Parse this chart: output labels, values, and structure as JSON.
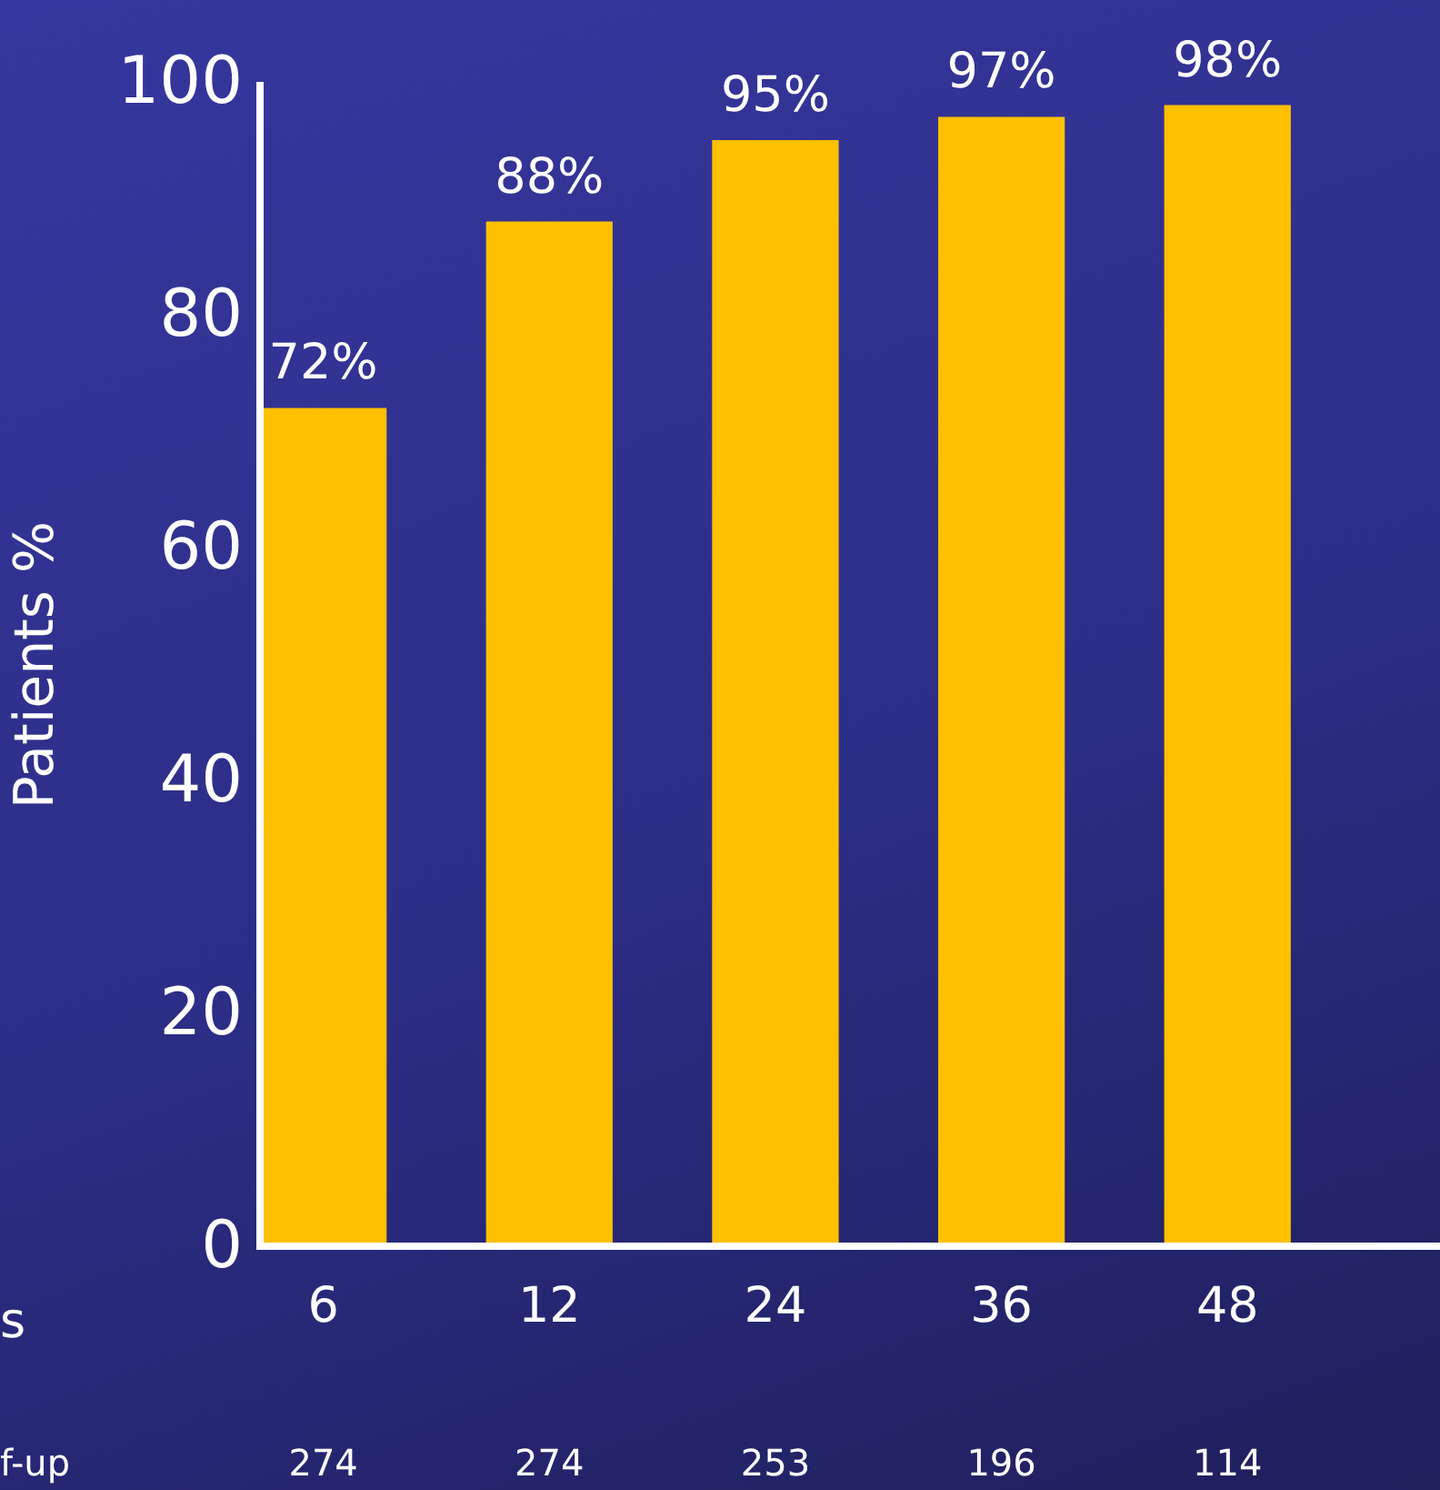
{
  "chart_data": {
    "type": "bar",
    "ylabel": "Patients %",
    "categories": [
      "6",
      "12",
      "24",
      "36",
      "48"
    ],
    "values": [
      72,
      88,
      95,
      97,
      98
    ],
    "value_labels": [
      "72%",
      "88%",
      "95%",
      "97%",
      "98%"
    ],
    "color": "#ffc000",
    "ylim": [
      0,
      100
    ],
    "yticks": [
      0,
      20,
      40,
      60,
      80,
      100
    ],
    "grid": false,
    "annotations": [
      "s",
      "f-up",
      "274",
      "274",
      "253",
      "196",
      "114"
    ]
  }
}
